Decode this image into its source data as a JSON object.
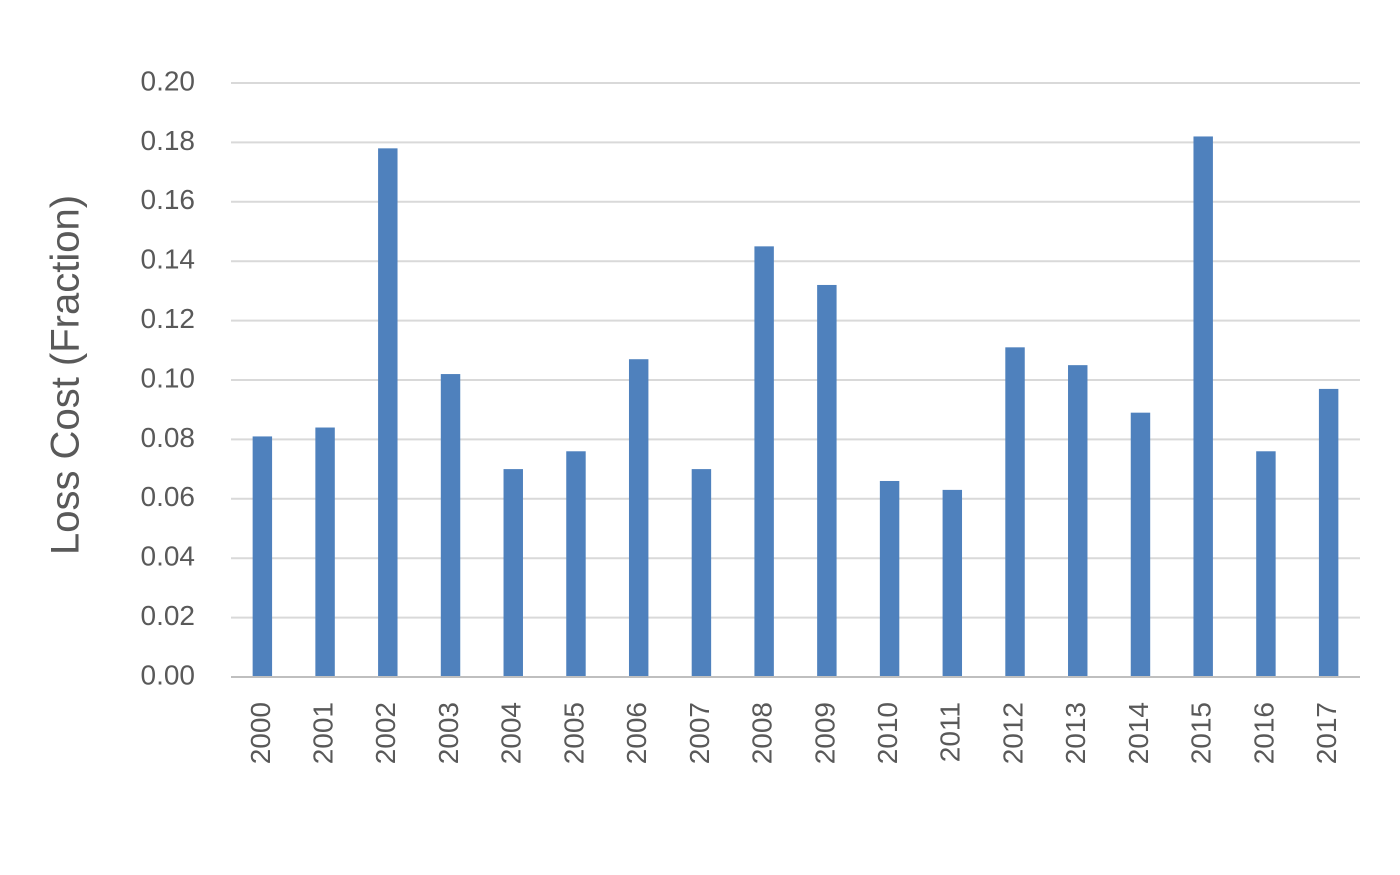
{
  "chart_data": {
    "type": "bar",
    "y_label": "Loss Cost (Fraction)",
    "categories": [
      "2000",
      "2001",
      "2002",
      "2003",
      "2004",
      "2005",
      "2006",
      "2007",
      "2008",
      "2009",
      "2010",
      "2011",
      "2012",
      "2013",
      "2014",
      "2015",
      "2016",
      "2017"
    ],
    "values": [
      0.081,
      0.084,
      0.178,
      0.102,
      0.07,
      0.076,
      0.107,
      0.07,
      0.145,
      0.132,
      0.066,
      0.063,
      0.111,
      0.105,
      0.089,
      0.182,
      0.076,
      0.097
    ],
    "color": "#4f81bd",
    "ylim": [
      0,
      0.2
    ],
    "yticks": [
      {
        "value": 0,
        "label": "0.00"
      },
      {
        "value": 0.02,
        "label": "0.02"
      },
      {
        "value": 0.04,
        "label": "0.04"
      },
      {
        "value": 0.06,
        "label": "0.06"
      },
      {
        "value": 0.08,
        "label": "0.08"
      },
      {
        "value": 0.1,
        "label": "0.10"
      },
      {
        "value": 0.12,
        "label": "0.12"
      },
      {
        "value": 0.14,
        "label": "0.14"
      },
      {
        "value": 0.16,
        "label": "0.16"
      },
      {
        "value": 0.18,
        "label": "0.18"
      },
      {
        "value": 0.2,
        "label": "0.20"
      }
    ],
    "grid": true
  }
}
